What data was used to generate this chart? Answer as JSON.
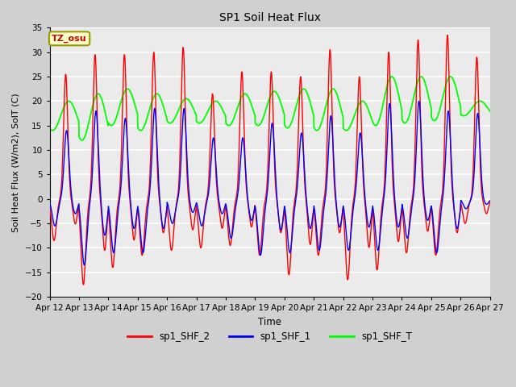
{
  "title": "SP1 Soil Heat Flux",
  "xlabel": "Time",
  "ylabel": "Soil Heat Flux (W/m2), SolT (C)",
  "ylim": [
    -20,
    35
  ],
  "legend_labels": [
    "sp1_SHF_2",
    "sp1_SHF_1",
    "sp1_SHF_T"
  ],
  "legend_colors": [
    "red",
    "blue",
    "lime"
  ],
  "annotation_text": "TZ_osu",
  "annotation_color": "#cc0000",
  "annotation_bg": "#ffffcc",
  "background_color": "#d0d0d0",
  "plot_bg": "#ebebeb",
  "grid_color": "white",
  "xtick_labels": [
    "Apr 12",
    "Apr 13",
    "Apr 14",
    "Apr 15",
    "Apr 16",
    "Apr 17",
    "Apr 18",
    "Apr 19",
    "Apr 20",
    "Apr 21",
    "Apr 22",
    "Apr 23",
    "Apr 24",
    "Apr 25",
    "Apr 26",
    "Apr 27"
  ],
  "num_days": 15,
  "shf2_peaks": [
    25.5,
    29.5,
    29.5,
    30.0,
    31.0,
    21.5,
    26.0,
    26.0,
    25.0,
    30.5,
    25.0,
    30.0,
    32.5,
    33.5,
    29.0
  ],
  "shf2_troughs": [
    -8.5,
    -17.5,
    -14.0,
    -11.5,
    -10.5,
    -10.0,
    -9.5,
    -11.5,
    -15.5,
    -11.5,
    -16.5,
    -14.5,
    -11.0,
    -11.5,
    -5.0
  ],
  "shf1_peaks": [
    14.0,
    18.0,
    16.5,
    18.5,
    18.5,
    12.5,
    12.5,
    15.5,
    13.5,
    17.0,
    13.5,
    19.5,
    20.0,
    18.0,
    17.5
  ],
  "shf1_troughs": [
    -5.5,
    -13.5,
    -11.0,
    -11.0,
    -5.0,
    -5.5,
    -8.0,
    -11.5,
    -11.0,
    -10.5,
    -10.5,
    -10.5,
    -8.0,
    -11.0,
    -2.0
  ],
  "shft_peaks": [
    20.0,
    21.5,
    22.5,
    21.5,
    20.5,
    20.0,
    21.5,
    22.0,
    22.5,
    22.5,
    20.0,
    25.0,
    25.0,
    25.0,
    20.0
  ],
  "shft_troughs": [
    14.0,
    12.0,
    15.0,
    14.0,
    15.5,
    15.5,
    15.0,
    15.0,
    14.5,
    14.0,
    14.0,
    15.0,
    15.5,
    16.0,
    17.0
  ]
}
